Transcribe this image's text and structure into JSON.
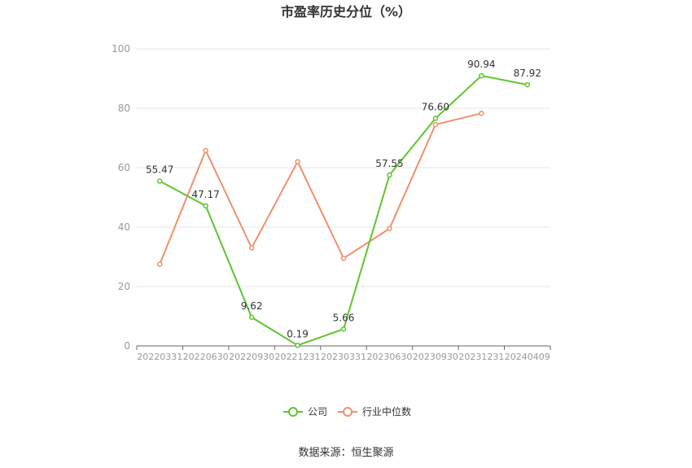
{
  "chart_data": {
    "type": "line",
    "title": "市盈率历史分位（%）",
    "categories": [
      "20220331",
      "20220630",
      "20220930",
      "20221231",
      "20230331",
      "20230630",
      "20230930",
      "20231231",
      "20240409"
    ],
    "ylim": [
      0,
      100
    ],
    "yticks": [
      0,
      20,
      40,
      60,
      80,
      100
    ],
    "grid": true,
    "legend_position": "bottom",
    "series": [
      {
        "name": "公司",
        "color": "#5ec52f",
        "values": [
          55.47,
          47.17,
          9.62,
          0.19,
          5.66,
          57.55,
          76.6,
          90.94,
          87.92
        ],
        "labels": [
          "55.47",
          "47.17",
          "9.62",
          "0.19",
          "5.66",
          "57.55",
          "76.60",
          "90.94",
          "87.92"
        ]
      },
      {
        "name": "行业中位数",
        "color": "#f0906a",
        "values": [
          27.5,
          65.8,
          33.0,
          62.0,
          29.5,
          39.5,
          74.5,
          78.3,
          null
        ]
      }
    ],
    "source": "数据来源：恒生聚源"
  }
}
